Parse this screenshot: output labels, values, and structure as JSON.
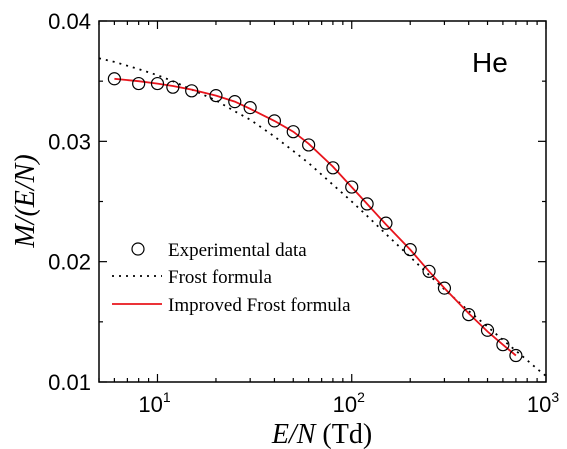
{
  "chart_data": {
    "type": "line",
    "annotation": "He",
    "xlabel": {
      "var": "E/N",
      "unit": "(Td)"
    },
    "ylabel": "M/(E/N)",
    "xscale": "log",
    "xlim": [
      5,
      1000
    ],
    "ylim": [
      0.01,
      0.04
    ],
    "x_ticks": [
      {
        "base": "10",
        "exp": "1",
        "value": 10
      },
      {
        "base": "10",
        "exp": "2",
        "value": 100
      },
      {
        "base": "10",
        "exp": "3",
        "value": 1000
      }
    ],
    "y_ticks": [
      {
        "label": "0.01",
        "value": 0.01
      },
      {
        "label": "0.02",
        "value": 0.02
      },
      {
        "label": "0.03",
        "value": 0.03
      },
      {
        "label": "0.04",
        "value": 0.04
      }
    ],
    "legend_position": "lower-left",
    "series": [
      {
        "name": "Experimental data",
        "kind": "scatter",
        "marker": "open-circle",
        "color": "#000000",
        "x": [
          6,
          8,
          10,
          12,
          15,
          20,
          25,
          30,
          40,
          50,
          60,
          80,
          100,
          120,
          150,
          200,
          250,
          300,
          400,
          500,
          600,
          700
        ],
        "y": [
          0.0352,
          0.0348,
          0.0348,
          0.0345,
          0.0342,
          0.0338,
          0.0333,
          0.0328,
          0.0317,
          0.0308,
          0.0297,
          0.0278,
          0.0262,
          0.0248,
          0.0232,
          0.021,
          0.0192,
          0.0178,
          0.0156,
          0.0143,
          0.0131,
          0.0122
        ]
      },
      {
        "name": "Frost formula",
        "kind": "line",
        "style": "dotted",
        "color": "#000000",
        "x": [
          5,
          6,
          8,
          10,
          12,
          15,
          20,
          25,
          30,
          40,
          50,
          60,
          80,
          100,
          120,
          150,
          200,
          250,
          300,
          400,
          500,
          600,
          700,
          800,
          900,
          1000
        ],
        "y": [
          0.0369,
          0.0366,
          0.036,
          0.0355,
          0.035,
          0.0343,
          0.0334,
          0.0325,
          0.0318,
          0.0304,
          0.0292,
          0.0282,
          0.0264,
          0.025,
          0.0238,
          0.0223,
          0.0204,
          0.0189,
          0.0177,
          0.0159,
          0.0146,
          0.0135,
          0.0126,
          0.0118,
          0.0111,
          0.0105
        ]
      },
      {
        "name": "Improved Frost formula",
        "kind": "line",
        "style": "solid",
        "color": "#e8141c",
        "x": [
          6,
          8,
          10,
          12,
          15,
          20,
          25,
          30,
          40,
          50,
          60,
          80,
          100,
          120,
          150,
          200,
          250,
          300,
          400,
          500,
          600,
          700
        ],
        "y": [
          0.0352,
          0.035,
          0.0348,
          0.0346,
          0.0343,
          0.0338,
          0.0333,
          0.0327,
          0.0317,
          0.0308,
          0.0298,
          0.0279,
          0.0262,
          0.0248,
          0.0231,
          0.021,
          0.0192,
          0.0178,
          0.0157,
          0.0142,
          0.0131,
          0.0122
        ]
      }
    ]
  }
}
